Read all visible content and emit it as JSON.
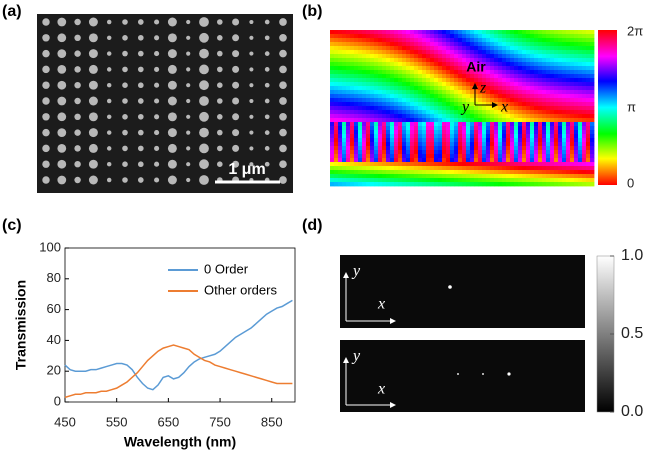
{
  "panels": {
    "a": {
      "label": "(a)",
      "scale_bar": "1 μm"
    },
    "b": {
      "label": "(b)",
      "medium": "Air",
      "axes": [
        "z",
        "y",
        "x"
      ],
      "colorbar_ticks": [
        "2π",
        "π",
        "0"
      ]
    },
    "c": {
      "label": "(c)"
    },
    "d": {
      "label": "(d)",
      "axes_top": [
        "y",
        "x"
      ],
      "axes_bottom": [
        "y",
        "x"
      ],
      "colorbar_ticks": [
        {
          "value": 1,
          "label": "1.0"
        },
        {
          "value": 0.5,
          "label": "0.5"
        },
        {
          "value": 0,
          "label": "0.0"
        }
      ]
    }
  },
  "chart_data": {
    "type": "line",
    "xlabel": "Wavelength (nm)",
    "ylabel": "Transmission",
    "x": [
      450,
      460,
      470,
      480,
      490,
      500,
      510,
      520,
      530,
      540,
      550,
      560,
      570,
      580,
      590,
      600,
      610,
      620,
      630,
      640,
      650,
      660,
      670,
      680,
      690,
      700,
      710,
      720,
      730,
      740,
      750,
      760,
      770,
      780,
      790,
      800,
      810,
      820,
      830,
      840,
      850,
      860,
      870,
      880,
      890
    ],
    "series": [
      {
        "name": "0 Order",
        "color": "#5b9bd5",
        "values": [
          24,
          21,
          20,
          20,
          20,
          21,
          21,
          22,
          23,
          24,
          25,
          25,
          24,
          21,
          16,
          12,
          9,
          8,
          11,
          16,
          17,
          15,
          16,
          19,
          23,
          26,
          28,
          29,
          30,
          31,
          33,
          36,
          39,
          42,
          44,
          46,
          48,
          51,
          54,
          57,
          59,
          61,
          62,
          64,
          66
        ]
      },
      {
        "name": "Other orders",
        "color": "#ed7d31",
        "values": [
          3,
          4,
          5,
          5,
          6,
          6,
          6,
          7,
          7,
          8,
          9,
          11,
          13,
          16,
          19,
          23,
          27,
          30,
          33,
          35,
          36,
          37,
          36,
          35,
          34,
          31,
          29,
          27,
          26,
          24,
          23,
          22,
          21,
          20,
          19,
          18,
          17,
          16,
          15,
          14,
          13,
          12,
          12,
          12,
          12
        ]
      }
    ],
    "xlim": [
      450,
      895
    ],
    "xticks": [
      450,
      550,
      650,
      750,
      850
    ],
    "ylim": [
      0,
      100
    ],
    "yticks": [
      0,
      20,
      40,
      60,
      80,
      100
    ],
    "legend": "upper right"
  }
}
